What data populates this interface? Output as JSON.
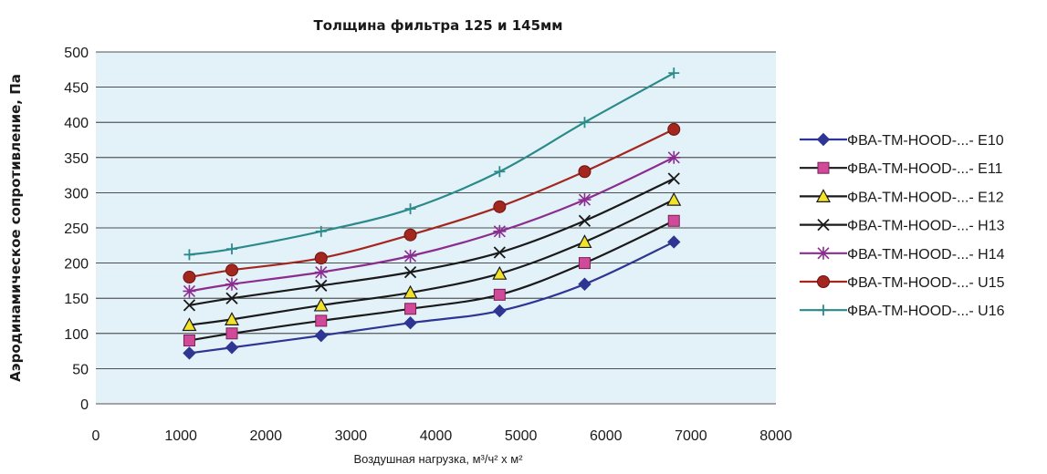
{
  "chart_data": {
    "type": "line",
    "title": "Толщина фильтра 125 и 145мм",
    "xlabel": "Воздушная нагрузка, м³/ч² х м²",
    "ylabel": "Аэродинамическое сопротивление, Па",
    "xlim": [
      0,
      8000
    ],
    "ylim": [
      0,
      500
    ],
    "xticks": [
      "0",
      "1000",
      "2000",
      "3000",
      "4000",
      "5000",
      "6000",
      "7000",
      "8000"
    ],
    "yticks": [
      "0",
      "50",
      "100",
      "150",
      "200",
      "250",
      "300",
      "350",
      "400",
      "450",
      "500"
    ],
    "grid": "horizontal",
    "legend_position": "right",
    "x": [
      1100,
      1600,
      2650,
      3700,
      4750,
      5750,
      6800
    ],
    "series": [
      {
        "name": "ФВА-ТМ-HOOD-...- E10",
        "color": "#2e3592",
        "marker": "diamond",
        "values": [
          72,
          80,
          97,
          115,
          132,
          170,
          230
        ]
      },
      {
        "name": "ФВА-ТМ-HOOD-...- E11",
        "color": "#1a1a1a",
        "marker": "square",
        "values": [
          90,
          100,
          118,
          135,
          155,
          200,
          260
        ]
      },
      {
        "name": "ФВА-ТМ-HOOD-...- E12",
        "color": "#1a1a1a",
        "marker": "triangle",
        "values": [
          112,
          120,
          140,
          158,
          185,
          230,
          290
        ]
      },
      {
        "name": "ФВА-ТМ-HOOD-...- H13",
        "color": "#1a1a1a",
        "marker": "x",
        "values": [
          140,
          150,
          168,
          187,
          215,
          260,
          320
        ]
      },
      {
        "name": "ФВА-ТМ-HOOD-...- H14",
        "color": "#8b2d8f",
        "marker": "asterisk",
        "values": [
          160,
          170,
          187,
          210,
          245,
          290,
          350
        ]
      },
      {
        "name": "ФВА-ТМ-HOOD-...- U15",
        "color": "#a3261f",
        "marker": "circle",
        "values": [
          180,
          190,
          207,
          240,
          280,
          330,
          390
        ]
      },
      {
        "name": "ФВА-ТМ-HOOD-...- U16",
        "color": "#2b8a8a",
        "marker": "plus",
        "values": [
          212,
          220,
          245,
          277,
          330,
          400,
          470
        ]
      }
    ]
  },
  "colors": {
    "plot_bg": "#e3f1f9",
    "grid": "#1a1a1a"
  }
}
